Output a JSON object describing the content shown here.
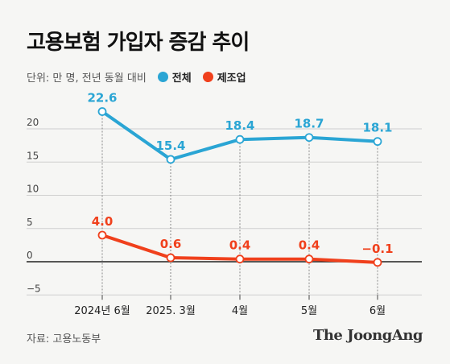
{
  "header": {
    "title": "고용보험 가입자 증감 추이",
    "unit_note": "단위: 만 명, 전년 동월 대비"
  },
  "colors": {
    "total": "#2aa5d4",
    "manufacturing": "#f0401c",
    "axis": "#222222",
    "grid": "#cfcfcf"
  },
  "chart_data": {
    "type": "line",
    "categories": [
      "2024년 6월",
      "2025. 3월",
      "4월",
      "5월",
      "6월"
    ],
    "series": [
      {
        "name": "전체",
        "values": [
          22.6,
          15.4,
          18.4,
          18.7,
          18.1
        ],
        "labels": [
          "22.6",
          "15.4",
          "18.4",
          "18.7",
          "18.1"
        ]
      },
      {
        "name": "제조업",
        "values": [
          4.0,
          0.6,
          0.4,
          0.4,
          -0.1
        ],
        "labels": [
          "4.0",
          "0.6",
          "0.4",
          "0.4",
          "−0.1"
        ]
      }
    ],
    "yticks": [
      {
        "value": 20,
        "label": "20"
      },
      {
        "value": 15,
        "label": "15"
      },
      {
        "value": 10,
        "label": "10"
      },
      {
        "value": 5,
        "label": "5"
      },
      {
        "value": 0,
        "label": "0"
      },
      {
        "value": -5,
        "label": "−5"
      }
    ],
    "ylim": [
      -5,
      23
    ],
    "grid": true,
    "legend": "top-left"
  },
  "footer": {
    "source": "자료: 고용노동부",
    "brand": "The JoongAng"
  }
}
